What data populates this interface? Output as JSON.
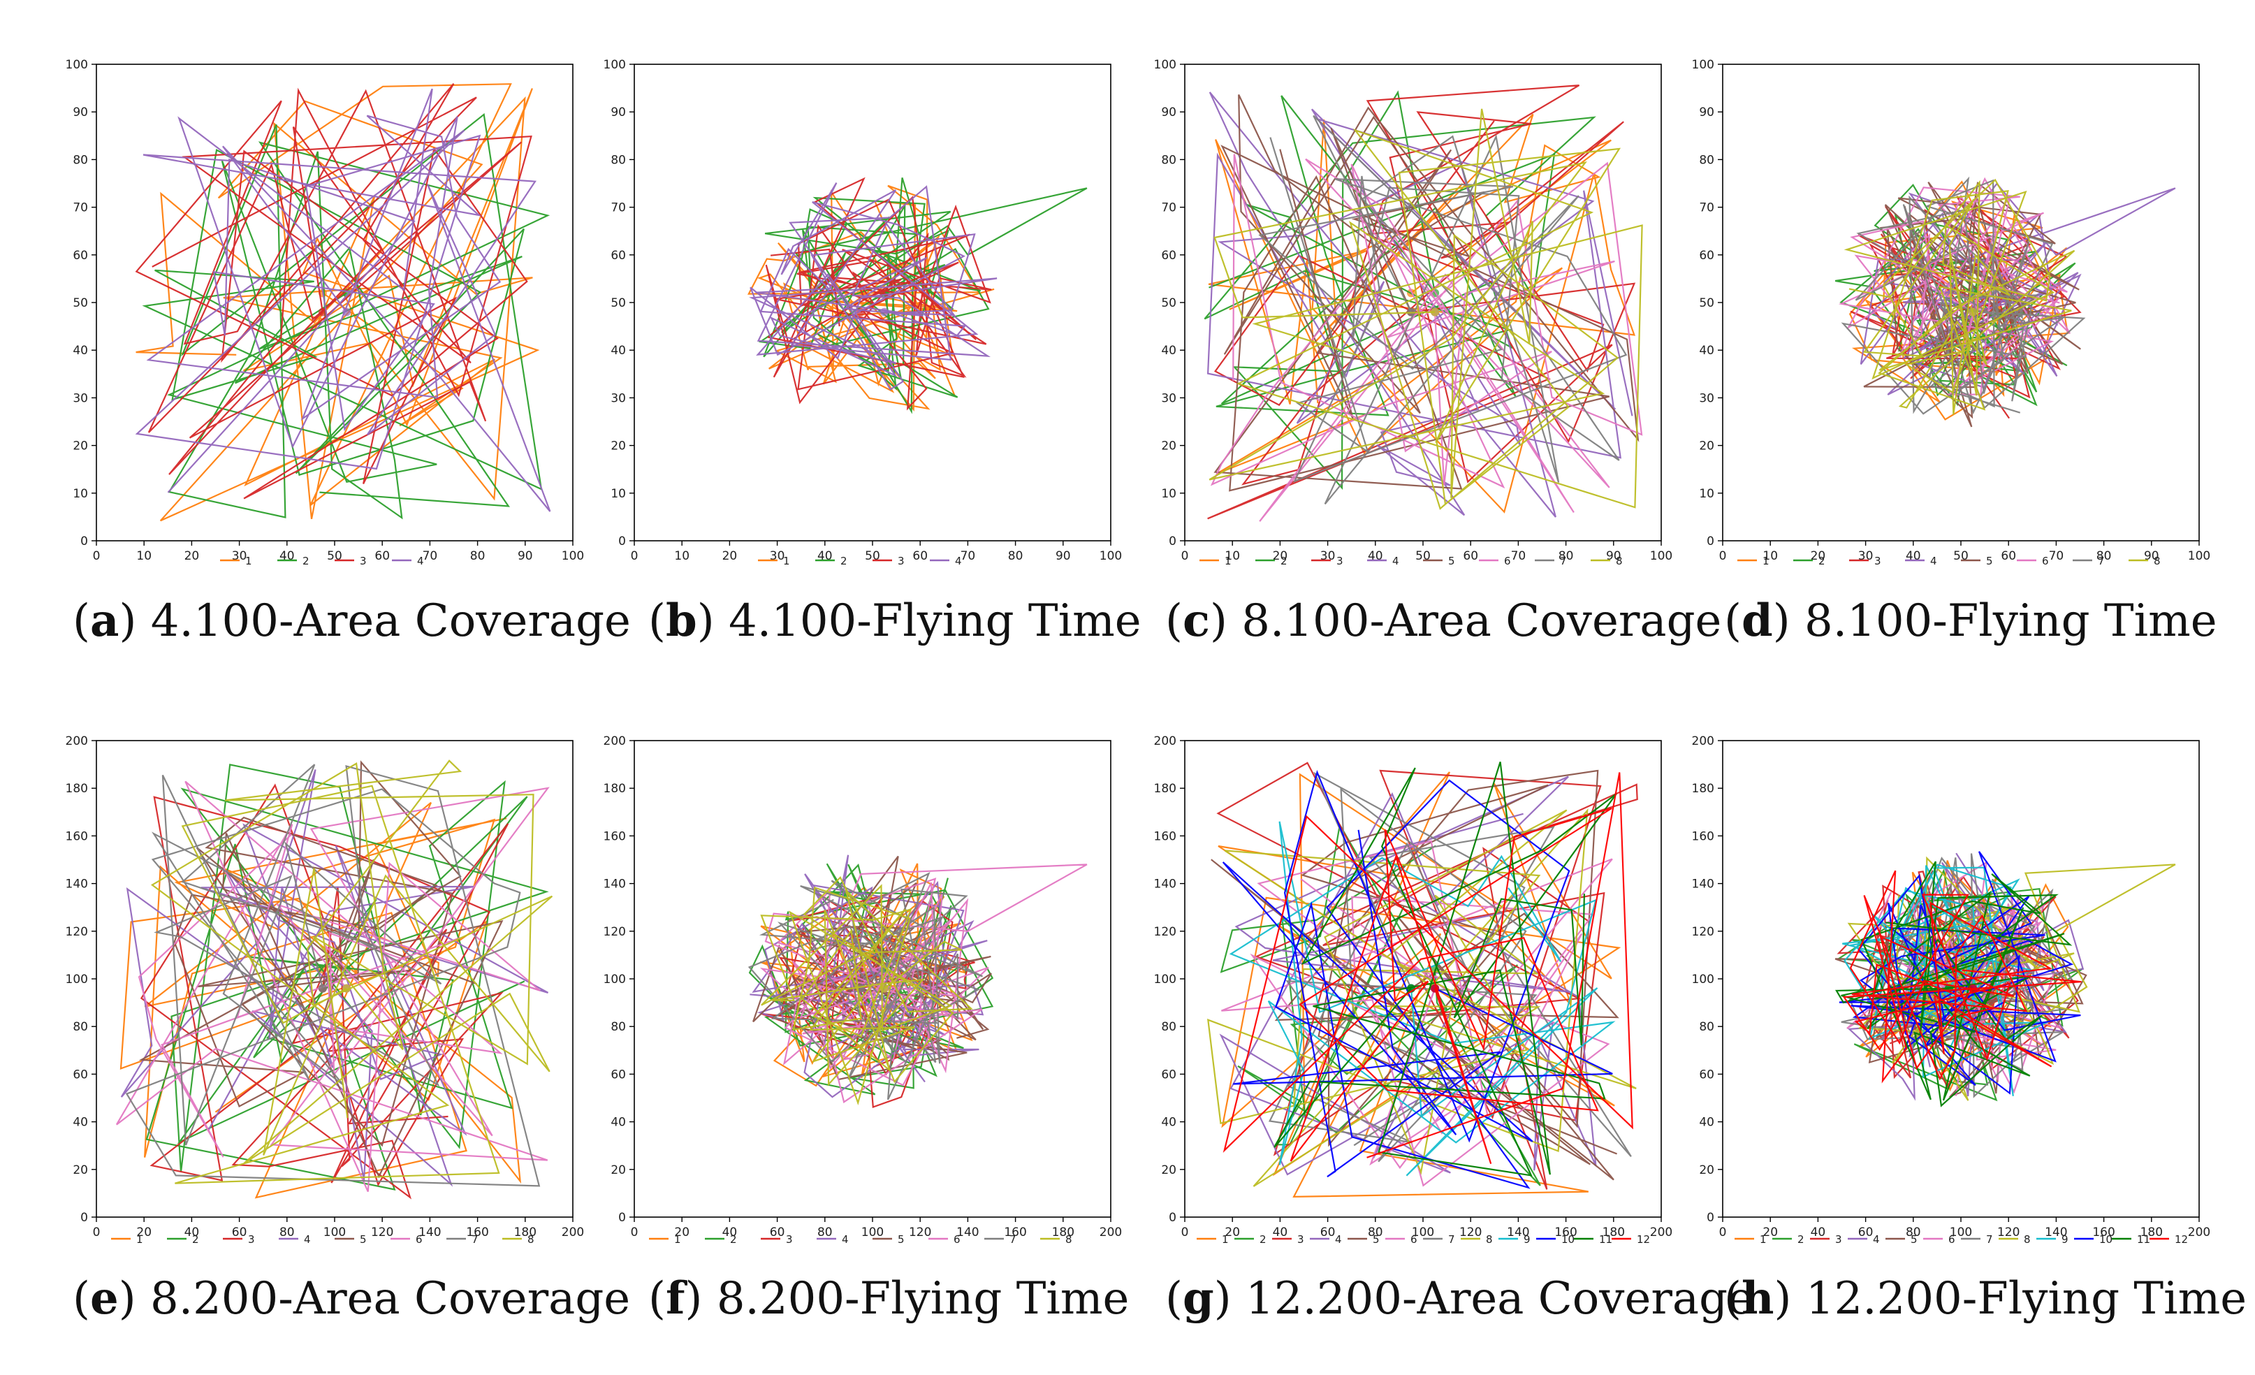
{
  "chart_data": [
    {
      "id": "a",
      "type": "line",
      "label": "a",
      "title": "4.100-Area Coverage",
      "range": 100,
      "ticks": [
        0,
        10,
        20,
        30,
        40,
        50,
        60,
        70,
        80,
        90,
        100
      ],
      "pattern": "spread",
      "legend": [
        "1",
        "2",
        "3",
        "4"
      ],
      "colors": [
        "#ff7f0e",
        "#2ca02c",
        "#d62728",
        "#9467bd"
      ],
      "ylim": [
        0,
        100
      ],
      "xlim": [
        0,
        100
      ]
    },
    {
      "id": "b",
      "type": "line",
      "label": "b",
      "title": "4.100-Flying Time",
      "range": 100,
      "ticks": [
        0,
        10,
        20,
        30,
        40,
        50,
        60,
        70,
        80,
        90,
        100
      ],
      "pattern": "cluster",
      "legend": [
        "1",
        "2",
        "3",
        "4"
      ],
      "colors": [
        "#ff7f0e",
        "#2ca02c",
        "#d62728",
        "#9467bd"
      ],
      "ylim": [
        0,
        100
      ],
      "xlim": [
        0,
        100
      ]
    },
    {
      "id": "c",
      "type": "line",
      "label": "c",
      "title": "8.100-Area Coverage",
      "range": 100,
      "ticks": [
        0,
        10,
        20,
        30,
        40,
        50,
        60,
        70,
        80,
        90,
        100
      ],
      "pattern": "spread",
      "legend": [
        "1",
        "2",
        "3",
        "4",
        "5",
        "6",
        "7",
        "8"
      ],
      "colors": [
        "#ff7f0e",
        "#2ca02c",
        "#d62728",
        "#9467bd",
        "#8c564b",
        "#e377c2",
        "#7f7f7f",
        "#bcbd22"
      ],
      "ylim": [
        0,
        100
      ],
      "xlim": [
        0,
        100
      ]
    },
    {
      "id": "d",
      "type": "line",
      "label": "d",
      "title": "8.100-Flying Time",
      "range": 100,
      "ticks": [
        0,
        10,
        20,
        30,
        40,
        50,
        60,
        70,
        80,
        90,
        100
      ],
      "pattern": "cluster",
      "legend": [
        "1",
        "2",
        "3",
        "4",
        "5",
        "6",
        "7",
        "8"
      ],
      "colors": [
        "#ff7f0e",
        "#2ca02c",
        "#d62728",
        "#9467bd",
        "#8c564b",
        "#e377c2",
        "#7f7f7f",
        "#bcbd22"
      ],
      "ylim": [
        0,
        100
      ],
      "xlim": [
        0,
        100
      ]
    },
    {
      "id": "e",
      "type": "line",
      "label": "e",
      "title": "8.200-Area Coverage",
      "range": 200,
      "ticks": [
        0,
        20,
        40,
        60,
        80,
        100,
        120,
        140,
        160,
        180,
        200
      ],
      "pattern": "spread",
      "legend": [
        "1",
        "2",
        "3",
        "4",
        "5",
        "6",
        "7",
        "8"
      ],
      "colors": [
        "#ff7f0e",
        "#2ca02c",
        "#d62728",
        "#9467bd",
        "#8c564b",
        "#e377c2",
        "#7f7f7f",
        "#bcbd22"
      ],
      "ylim": [
        0,
        200
      ],
      "xlim": [
        0,
        200
      ]
    },
    {
      "id": "f",
      "type": "line",
      "label": "f",
      "title": "8.200-Flying Time",
      "range": 200,
      "ticks": [
        0,
        20,
        40,
        60,
        80,
        100,
        120,
        140,
        160,
        180,
        200
      ],
      "pattern": "cluster",
      "legend": [
        "1",
        "2",
        "3",
        "4",
        "5",
        "6",
        "7",
        "8"
      ],
      "colors": [
        "#ff7f0e",
        "#2ca02c",
        "#d62728",
        "#9467bd",
        "#8c564b",
        "#e377c2",
        "#7f7f7f",
        "#bcbd22"
      ],
      "ylim": [
        0,
        200
      ],
      "xlim": [
        0,
        200
      ]
    },
    {
      "id": "g",
      "type": "line",
      "label": "g",
      "title": "12.200-Area Coverage",
      "range": 200,
      "ticks": [
        0,
        20,
        40,
        60,
        80,
        100,
        120,
        140,
        160,
        180,
        200
      ],
      "pattern": "spread",
      "legend": [
        "1",
        "2",
        "3",
        "4",
        "5",
        "6",
        "7",
        "8",
        "9",
        "10",
        "11",
        "12"
      ],
      "colors": [
        "#ff7f0e",
        "#2ca02c",
        "#d62728",
        "#9467bd",
        "#8c564b",
        "#e377c2",
        "#7f7f7f",
        "#bcbd22",
        "#17becf",
        "#0000ff",
        "#008000",
        "#ff0000"
      ],
      "ylim": [
        0,
        200
      ],
      "xlim": [
        0,
        200
      ]
    },
    {
      "id": "h",
      "type": "line",
      "label": "h",
      "title": "12.200-Flying Time",
      "range": 200,
      "ticks": [
        0,
        20,
        40,
        60,
        80,
        100,
        120,
        140,
        160,
        180,
        200
      ],
      "pattern": "cluster",
      "legend": [
        "1",
        "2",
        "3",
        "4",
        "5",
        "6",
        "7",
        "8",
        "9",
        "10",
        "11",
        "12"
      ],
      "colors": [
        "#ff7f0e",
        "#2ca02c",
        "#d62728",
        "#9467bd",
        "#8c564b",
        "#e377c2",
        "#7f7f7f",
        "#bcbd22",
        "#17becf",
        "#0000ff",
        "#008000",
        "#ff0000"
      ],
      "ylim": [
        0,
        200
      ],
      "xlim": [
        0,
        200
      ]
    }
  ]
}
